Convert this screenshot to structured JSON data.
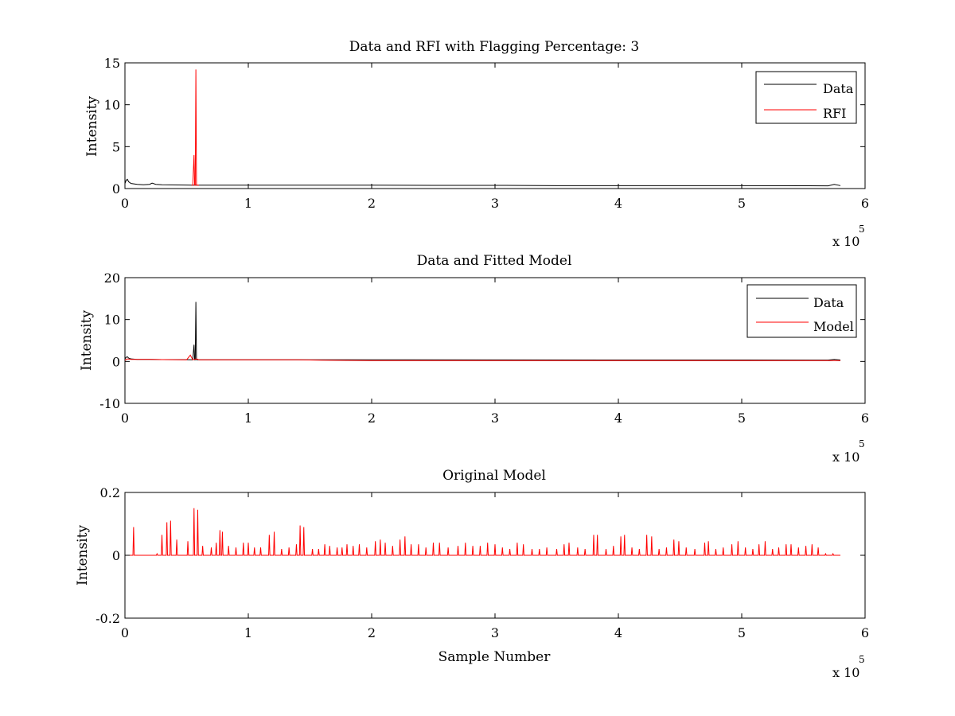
{
  "chart_data": [
    {
      "type": "line",
      "title": "Data and RFI with Flagging Percentage: 3",
      "xlabel": "",
      "ylabel": "Intensity",
      "xlim": [
        0,
        6
      ],
      "ylim": [
        0,
        15
      ],
      "x_multiplier_label": "x 10",
      "x_multiplier_exponent": "5",
      "x_ticks": [
        "0",
        "1",
        "2",
        "3",
        "4",
        "5",
        "6"
      ],
      "y_ticks": [
        "0",
        "5",
        "10",
        "15"
      ],
      "x_tick_values": [
        0,
        1,
        2,
        3,
        4,
        5,
        6
      ],
      "y_tick_values": [
        0,
        5,
        10,
        15
      ],
      "grid": false,
      "legend_position": "top-right",
      "series": [
        {
          "name": "Data",
          "color": "#000000",
          "x": [
            0,
            0.01,
            0.02,
            0.03,
            0.05,
            0.1,
            0.15,
            0.2,
            0.22,
            0.25,
            0.3,
            0.5,
            0.55,
            1.0,
            1.5,
            2.0,
            2.5,
            3.0,
            3.5,
            4.0,
            4.5,
            5.0,
            5.5,
            5.7,
            5.75,
            5.8
          ],
          "y": [
            0.6,
            1.0,
            1.1,
            0.8,
            0.6,
            0.5,
            0.45,
            0.5,
            0.65,
            0.5,
            0.45,
            0.42,
            0.4,
            0.4,
            0.4,
            0.4,
            0.38,
            0.38,
            0.35,
            0.35,
            0.35,
            0.35,
            0.33,
            0.32,
            0.5,
            0.35
          ]
        },
        {
          "name": "RFI",
          "color": "#ff0000",
          "x": [
            0.54,
            0.55,
            0.56,
            0.565,
            0.57,
            0.575,
            0.58,
            0.59,
            0.6
          ],
          "y": [
            0.4,
            0.4,
            4.0,
            0.4,
            0.4,
            14.2,
            0.4,
            0.4,
            0.4
          ]
        }
      ]
    },
    {
      "type": "line",
      "title": "Data and Fitted Model",
      "xlabel": "",
      "ylabel": "Intensity",
      "xlim": [
        0,
        6
      ],
      "ylim": [
        -10,
        20
      ],
      "x_multiplier_label": "x 10",
      "x_multiplier_exponent": "5",
      "x_ticks": [
        "0",
        "1",
        "2",
        "3",
        "4",
        "5",
        "6"
      ],
      "y_ticks": [
        "-10",
        "0",
        "10",
        "20"
      ],
      "x_tick_values": [
        0,
        1,
        2,
        3,
        4,
        5,
        6
      ],
      "y_tick_values": [
        -10,
        0,
        10,
        20
      ],
      "grid": false,
      "legend_position": "top-right",
      "series": [
        {
          "name": "Data",
          "color": "#000000",
          "x": [
            0,
            0.01,
            0.02,
            0.03,
            0.05,
            0.1,
            0.2,
            0.3,
            0.5,
            0.55,
            0.56,
            0.565,
            0.57,
            0.575,
            0.58,
            0.6,
            1.0,
            1.5,
            2.0,
            3.0,
            4.0,
            5.0,
            5.6,
            5.7,
            5.75,
            5.8
          ],
          "y": [
            0.6,
            1.0,
            1.1,
            0.8,
            0.6,
            0.5,
            0.5,
            0.45,
            0.42,
            0.4,
            4.0,
            0.4,
            0.4,
            14.2,
            0.4,
            0.4,
            0.4,
            0.4,
            0.4,
            0.38,
            0.35,
            0.35,
            0.33,
            0.32,
            0.5,
            0.35
          ]
        },
        {
          "name": "Model",
          "color": "#ff0000",
          "x": [
            0,
            0.02,
            0.05,
            0.1,
            0.2,
            0.3,
            0.5,
            0.53,
            0.55,
            0.58,
            0.6,
            1.0,
            1.4,
            1.6,
            2.0,
            3.0,
            4.0,
            5.0,
            5.8
          ],
          "y": [
            0.3,
            0.6,
            0.5,
            0.5,
            0.5,
            0.45,
            0.4,
            1.5,
            0.4,
            0.6,
            0.4,
            0.4,
            0.4,
            0.3,
            0.2,
            0.2,
            0.2,
            0.2,
            0.2
          ]
        }
      ]
    },
    {
      "type": "line",
      "title": "Original Model",
      "xlabel": "Sample Number",
      "ylabel": "Intensity",
      "xlim": [
        0,
        6
      ],
      "ylim": [
        -0.2,
        0.2
      ],
      "x_multiplier_label": "x 10",
      "x_multiplier_exponent": "5",
      "x_ticks": [
        "0",
        "1",
        "2",
        "3",
        "4",
        "5",
        "6"
      ],
      "y_ticks": [
        "-0.2",
        "0",
        "0.2"
      ],
      "x_tick_values": [
        0,
        1,
        2,
        3,
        4,
        5,
        6
      ],
      "y_tick_values": [
        -0.2,
        0,
        0.2
      ],
      "grid": false,
      "series": [
        {
          "color": "#ff0000",
          "baseline": 0,
          "x_end": 5.8,
          "spikes": [
            [
              0.07,
              0.09
            ],
            [
              0.26,
              0.005
            ],
            [
              0.3,
              0.065
            ],
            [
              0.34,
              0.105
            ],
            [
              0.37,
              0.11
            ],
            [
              0.42,
              0.05
            ],
            [
              0.51,
              0.045
            ],
            [
              0.56,
              0.15
            ],
            [
              0.59,
              0.145
            ],
            [
              0.63,
              0.03
            ],
            [
              0.7,
              0.025
            ],
            [
              0.74,
              0.04
            ],
            [
              0.77,
              0.08
            ],
            [
              0.79,
              0.075
            ],
            [
              0.84,
              0.03
            ],
            [
              0.9,
              0.025
            ],
            [
              0.96,
              0.04
            ],
            [
              1.0,
              0.04
            ],
            [
              1.05,
              0.025
            ],
            [
              1.1,
              0.025
            ],
            [
              1.17,
              0.065
            ],
            [
              1.21,
              0.075
            ],
            [
              1.27,
              0.02
            ],
            [
              1.33,
              0.025
            ],
            [
              1.39,
              0.035
            ],
            [
              1.42,
              0.095
            ],
            [
              1.45,
              0.09
            ],
            [
              1.52,
              0.02
            ],
            [
              1.57,
              0.02
            ],
            [
              1.62,
              0.035
            ],
            [
              1.66,
              0.03
            ],
            [
              1.72,
              0.025
            ],
            [
              1.76,
              0.025
            ],
            [
              1.8,
              0.035
            ],
            [
              1.85,
              0.03
            ],
            [
              1.9,
              0.035
            ],
            [
              1.96,
              0.025
            ],
            [
              2.03,
              0.045
            ],
            [
              2.07,
              0.05
            ],
            [
              2.11,
              0.04
            ],
            [
              2.17,
              0.03
            ],
            [
              2.23,
              0.05
            ],
            [
              2.27,
              0.06
            ],
            [
              2.32,
              0.035
            ],
            [
              2.38,
              0.035
            ],
            [
              2.44,
              0.025
            ],
            [
              2.5,
              0.04
            ],
            [
              2.55,
              0.04
            ],
            [
              2.62,
              0.025
            ],
            [
              2.7,
              0.03
            ],
            [
              2.76,
              0.04
            ],
            [
              2.82,
              0.03
            ],
            [
              2.88,
              0.03
            ],
            [
              2.94,
              0.04
            ],
            [
              3.0,
              0.035
            ],
            [
              3.06,
              0.025
            ],
            [
              3.12,
              0.02
            ],
            [
              3.18,
              0.04
            ],
            [
              3.23,
              0.035
            ],
            [
              3.3,
              0.02
            ],
            [
              3.36,
              0.02
            ],
            [
              3.42,
              0.025
            ],
            [
              3.5,
              0.02
            ],
            [
              3.56,
              0.035
            ],
            [
              3.6,
              0.04
            ],
            [
              3.67,
              0.025
            ],
            [
              3.73,
              0.02
            ],
            [
              3.8,
              0.065
            ],
            [
              3.83,
              0.065
            ],
            [
              3.9,
              0.02
            ],
            [
              3.96,
              0.03
            ],
            [
              4.02,
              0.06
            ],
            [
              4.05,
              0.065
            ],
            [
              4.11,
              0.025
            ],
            [
              4.17,
              0.02
            ],
            [
              4.23,
              0.065
            ],
            [
              4.27,
              0.06
            ],
            [
              4.33,
              0.02
            ],
            [
              4.39,
              0.025
            ],
            [
              4.45,
              0.05
            ],
            [
              4.49,
              0.045
            ],
            [
              4.55,
              0.025
            ],
            [
              4.62,
              0.02
            ],
            [
              4.7,
              0.04
            ],
            [
              4.73,
              0.045
            ],
            [
              4.79,
              0.02
            ],
            [
              4.85,
              0.025
            ],
            [
              4.92,
              0.035
            ],
            [
              4.97,
              0.045
            ],
            [
              5.03,
              0.025
            ],
            [
              5.09,
              0.02
            ],
            [
              5.14,
              0.035
            ],
            [
              5.19,
              0.045
            ],
            [
              5.25,
              0.02
            ],
            [
              5.3,
              0.025
            ],
            [
              5.36,
              0.035
            ],
            [
              5.4,
              0.035
            ],
            [
              5.46,
              0.025
            ],
            [
              5.52,
              0.03
            ],
            [
              5.57,
              0.035
            ],
            [
              5.62,
              0.025
            ],
            [
              5.68,
              0.005
            ],
            [
              5.74,
              0.005
            ]
          ]
        }
      ]
    }
  ]
}
